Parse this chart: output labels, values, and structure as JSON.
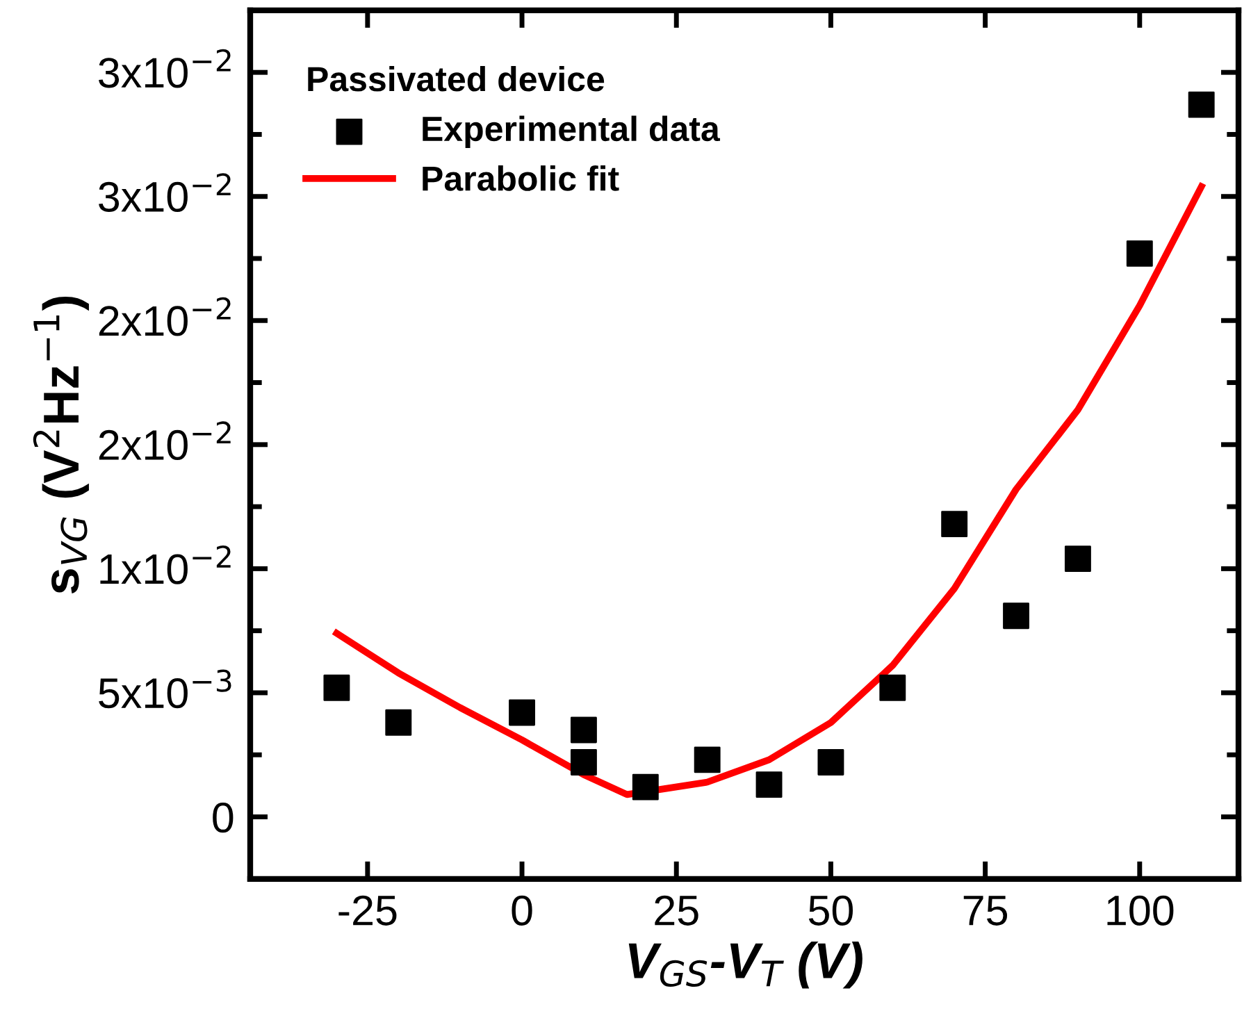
{
  "chart_data": {
    "type": "scatter",
    "xlabel": "V$_{GS}$-V$_{T}$ (V)",
    "ylabel": "s$_{VG}$ (V$^{2}$Hz$^{−1}$)",
    "legend_title": "Passivated device",
    "legend": "top left",
    "xlim": [
      -44,
      116
    ],
    "ylim": [
      -0.0025,
      0.0325
    ],
    "xticks": [
      -25,
      0,
      25,
      50,
      75,
      100
    ],
    "yticks": [
      {
        "value": 0,
        "label": "0"
      },
      {
        "value": 0.005,
        "label": "5x10$^{−3}$"
      },
      {
        "value": 0.01,
        "label": "1x10$^{−2}$"
      },
      {
        "value": 0.015,
        "label": "2x10$^{−2}$"
      },
      {
        "value": 0.02,
        "label": "2x10$^{−2}$"
      },
      {
        "value": 0.025,
        "label": "3x10$^{−2}$"
      },
      {
        "value": 0.03,
        "label": "3x10$^{−2}$"
      }
    ],
    "grid": false,
    "series": [
      {
        "name": "Experimental data",
        "marker": "square",
        "color": "#000000",
        "x": [
          -30,
          -20,
          0,
          10,
          10,
          20,
          30,
          40,
          50,
          60,
          70,
          80,
          90,
          100,
          110
        ],
        "values": [
          0.0052,
          0.0038,
          0.0042,
          0.0035,
          0.0022,
          0.0012,
          0.0023,
          0.0013,
          0.0022,
          0.0052,
          0.0118,
          0.0081,
          0.0104,
          0.0227,
          0.0287
        ]
      },
      {
        "name": "Parabolic fit",
        "type": "line",
        "line_style": "solid",
        "marker": "none",
        "color": "#ff0000",
        "x": [
          -30,
          -20,
          -10,
          0,
          10,
          17,
          30,
          40,
          50,
          60,
          70,
          80,
          90,
          100,
          110
        ],
        "values": [
          0.0074,
          0.0058,
          0.0044,
          0.0031,
          0.0017,
          0.0009,
          0.0014,
          0.0023,
          0.0038,
          0.0061,
          0.0092,
          0.0132,
          0.0164,
          0.0206,
          0.0254
        ]
      }
    ]
  }
}
